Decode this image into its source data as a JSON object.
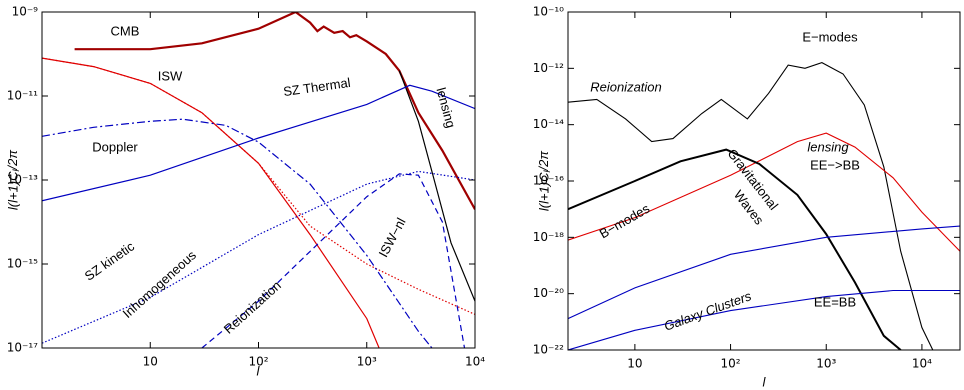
{
  "chart_data": [
    {
      "type": "line",
      "xlog": true,
      "ylog": true,
      "xlabel": "l",
      "ylabel": "l(l+1)Cl/2π",
      "xlim": [
        1,
        10000
      ],
      "ylim": [
        1e-17,
        1e-09
      ],
      "xticks": [
        10,
        {
          "value": 100,
          "label": "10²"
        },
        {
          "value": 1000,
          "label": "10³"
        },
        {
          "value": 10000,
          "label": "10⁴"
        }
      ],
      "yticks": [
        {
          "value": 1e-09,
          "label": "10⁻⁹"
        },
        {
          "value": 1e-11,
          "label": "10⁻¹¹"
        },
        {
          "value": 1e-13,
          "label": "10⁻¹³"
        },
        {
          "value": 1e-15,
          "label": "10⁻¹⁵"
        },
        {
          "value": 1e-17,
          "label": "10⁻¹⁷"
        }
      ],
      "annotations": [
        "CMB",
        "ISW",
        "SZ Thermal",
        "Doppler",
        "lensing",
        "SZ kinetic",
        "Inhomogeneous",
        "Reionization",
        "ISW−nl"
      ],
      "series": [
        {
          "color": "#a00000",
          "style": "solid",
          "width": 2.2,
          "x": [
            2,
            10,
            30,
            100,
            220,
            300,
            350,
            400,
            500,
            600,
            700,
            800,
            1000,
            1500,
            2000,
            3000,
            5000,
            10000
          ],
          "values": [
            1.3e-10,
            1.3e-10,
            1.8e-10,
            4e-10,
            1e-09,
            5.6e-10,
            3.5e-10,
            4.5e-10,
            3.2e-10,
            3.5e-10,
            2.5e-10,
            2.8e-10,
            2e-10,
            1e-10,
            4e-11,
            4e-12,
            5e-13,
            2e-14
          ]
        },
        {
          "color": "#000000",
          "style": "solid",
          "width": 1.2,
          "x": [
            2000,
            3000,
            4000,
            6000,
            10000
          ],
          "values": [
            4e-11,
            2.5e-12,
            1.6e-13,
            3.2e-15,
            1.3e-16
          ]
        },
        {
          "color": "#e00000",
          "style": "solid",
          "width": 1.2,
          "x": [
            1,
            3,
            10,
            30,
            100,
            300,
            1000,
            1300
          ],
          "values": [
            8e-11,
            5e-11,
            2e-11,
            4e-12,
            2.5e-13,
            5e-15,
            5e-17,
            1e-17
          ]
        },
        {
          "color": "#e00000",
          "style": "dotted",
          "width": 1.2,
          "x": [
            1,
            3,
            10,
            30,
            100,
            300,
            1000,
            3000,
            10000
          ],
          "values": [
            8e-11,
            5e-11,
            2e-11,
            4e-12,
            2.5e-13,
            8e-15,
            1e-15,
            2.5e-16,
            6.3e-17
          ]
        },
        {
          "color": "#0000c0",
          "style": "solid",
          "width": 1.2,
          "x": [
            1,
            10,
            100,
            1000,
            2500,
            4000,
            10000
          ],
          "values": [
            3.2e-14,
            1.3e-13,
            1e-12,
            6.3e-12,
            1.8e-11,
            1.3e-11,
            5e-12
          ]
        },
        {
          "color": "#0000c0",
          "style": "dashdot",
          "width": 1.2,
          "x": [
            1,
            3,
            10,
            20,
            50,
            100,
            300,
            1000,
            3000,
            4000
          ],
          "values": [
            1.1e-12,
            1.8e-12,
            2.5e-12,
            2.8e-12,
            2e-12,
            8e-13,
            8e-14,
            1.6e-15,
            2.5e-17,
            1e-17
          ]
        },
        {
          "color": "#0000c0",
          "style": "dotted",
          "width": 1.2,
          "x": [
            1,
            10,
            100,
            1000,
            3000,
            10000
          ],
          "values": [
            1.3e-17,
            1.6e-16,
            5e-15,
            8e-14,
            1.6e-13,
            1e-13
          ]
        },
        {
          "color": "#0000c0",
          "style": "dashed",
          "width": 1.2,
          "x": [
            30,
            100,
            300,
            1000,
            2000,
            3000,
            5000,
            8000
          ],
          "values": [
            1e-17,
            1.3e-16,
            2e-15,
            4e-14,
            1.4e-13,
            1.3e-13,
            1e-14,
            1e-17
          ]
        }
      ]
    },
    {
      "type": "line",
      "xlog": true,
      "ylog": true,
      "xlabel": "l",
      "ylabel": "l(l+1)Cl/2π",
      "xlim": [
        2,
        25000
      ],
      "ylim": [
        1e-22,
        1e-10
      ],
      "xticks": [
        10,
        {
          "value": 100,
          "label": "10²"
        },
        {
          "value": 1000,
          "label": "10³"
        },
        {
          "value": 10000,
          "label": "10⁴"
        }
      ],
      "yticks": [
        {
          "value": 1e-10,
          "label": "10⁻¹⁰"
        },
        {
          "value": 1e-12,
          "label": "10⁻¹²"
        },
        {
          "value": 1e-14,
          "label": "10⁻¹⁴"
        },
        {
          "value": 1e-16,
          "label": "10⁻¹⁶"
        },
        {
          "value": 1e-18,
          "label": "10⁻¹⁸"
        },
        {
          "value": 1e-20,
          "label": "10⁻²⁰"
        },
        {
          "value": 1e-22,
          "label": "10⁻²²"
        }
      ],
      "annotations": [
        "E−modes",
        "Reionization",
        "lensing",
        "EE−>BB",
        "B−modes",
        "Gravitational",
        "Waves",
        "EE=BB",
        "Galaxy Clusters"
      ],
      "series": [
        {
          "color": "#000000",
          "style": "solid",
          "width": 1.1,
          "x": [
            2,
            4,
            8,
            15,
            25,
            50,
            80,
            150,
            250,
            400,
            600,
            900,
            1500,
            2500,
            4000,
            6000,
            10000,
            13000
          ],
          "values": [
            6.3e-14,
            7.9e-14,
            1.6e-14,
            2.5e-15,
            3.2e-15,
            2.5e-14,
            7.9e-14,
            1.6e-14,
            1.3e-13,
            1.3e-12,
            1e-12,
            1.6e-12,
            6.3e-13,
            5e-14,
            3.2e-16,
            3.2e-19,
            6.3e-22,
            1e-22
          ]
        },
        {
          "color": "#e00000",
          "style": "solid",
          "width": 1.1,
          "x": [
            2,
            10,
            100,
            500,
            1000,
            2000,
            5000,
            10000,
            25000
          ],
          "values": [
            8e-19,
            5e-18,
            1.6e-16,
            2.5e-15,
            5e-15,
            1.6e-15,
            1.3e-16,
            7.9e-18,
            3.2e-19
          ]
        },
        {
          "color": "#000000",
          "style": "solid",
          "width": 2,
          "x": [
            2,
            10,
            30,
            90,
            200,
            500,
            1000,
            2000,
            4000,
            6000
          ],
          "values": [
            1e-17,
            1e-16,
            5e-16,
            1.3e-15,
            4e-16,
            3.2e-17,
            1.3e-18,
            2.5e-20,
            3.2e-22,
            1e-22
          ]
        },
        {
          "color": "#0000c0",
          "style": "solid",
          "width": 1.1,
          "x": [
            2,
            10,
            100,
            1000,
            10000,
            25000
          ],
          "values": [
            1.3e-21,
            1.6e-20,
            2.5e-19,
            1e-18,
            2e-18,
            2.5e-18
          ]
        },
        {
          "color": "#0000c0",
          "style": "solid",
          "width": 1.1,
          "x": [
            2,
            10,
            100,
            1000,
            5000,
            25000
          ],
          "values": [
            1e-22,
            5e-22,
            2.5e-21,
            7.9e-21,
            1.3e-20,
            1.3e-20
          ]
        }
      ]
    }
  ]
}
